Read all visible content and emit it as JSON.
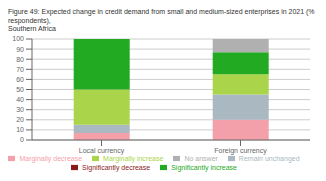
{
  "chart_data": {
    "type": "bar",
    "title": "Figure 49: Expected change in credit demand from small and medium-sized enterprises in 2021 (% respondents),",
    "subtitle": "Southern Africa",
    "categories": [
      "Local currency",
      "Foreign currency"
    ],
    "series": [
      {
        "name": "Significantly decrease",
        "color": "#8b1a1a",
        "values": [
          0,
          0
        ]
      },
      {
        "name": "Marginally decrease",
        "color": "#f4a0aa",
        "values": [
          7,
          20
        ]
      },
      {
        "name": "Remain unchanged",
        "color": "#aab8c2",
        "values": [
          8,
          25
        ]
      },
      {
        "name": "Marginally increase",
        "color": "#aad44a",
        "values": [
          35,
          20
        ]
      },
      {
        "name": "Significantly increase",
        "color": "#22aa22",
        "values": [
          50,
          22
        ]
      },
      {
        "name": "No answer",
        "color": "#b0b0b0",
        "values": [
          0,
          13
        ]
      }
    ],
    "stacked": true,
    "ylim": [
      0,
      100
    ],
    "yticks": [
      0,
      10,
      20,
      30,
      40,
      50,
      60,
      70,
      80,
      90,
      100
    ],
    "grid": true,
    "legend": "bottom"
  }
}
